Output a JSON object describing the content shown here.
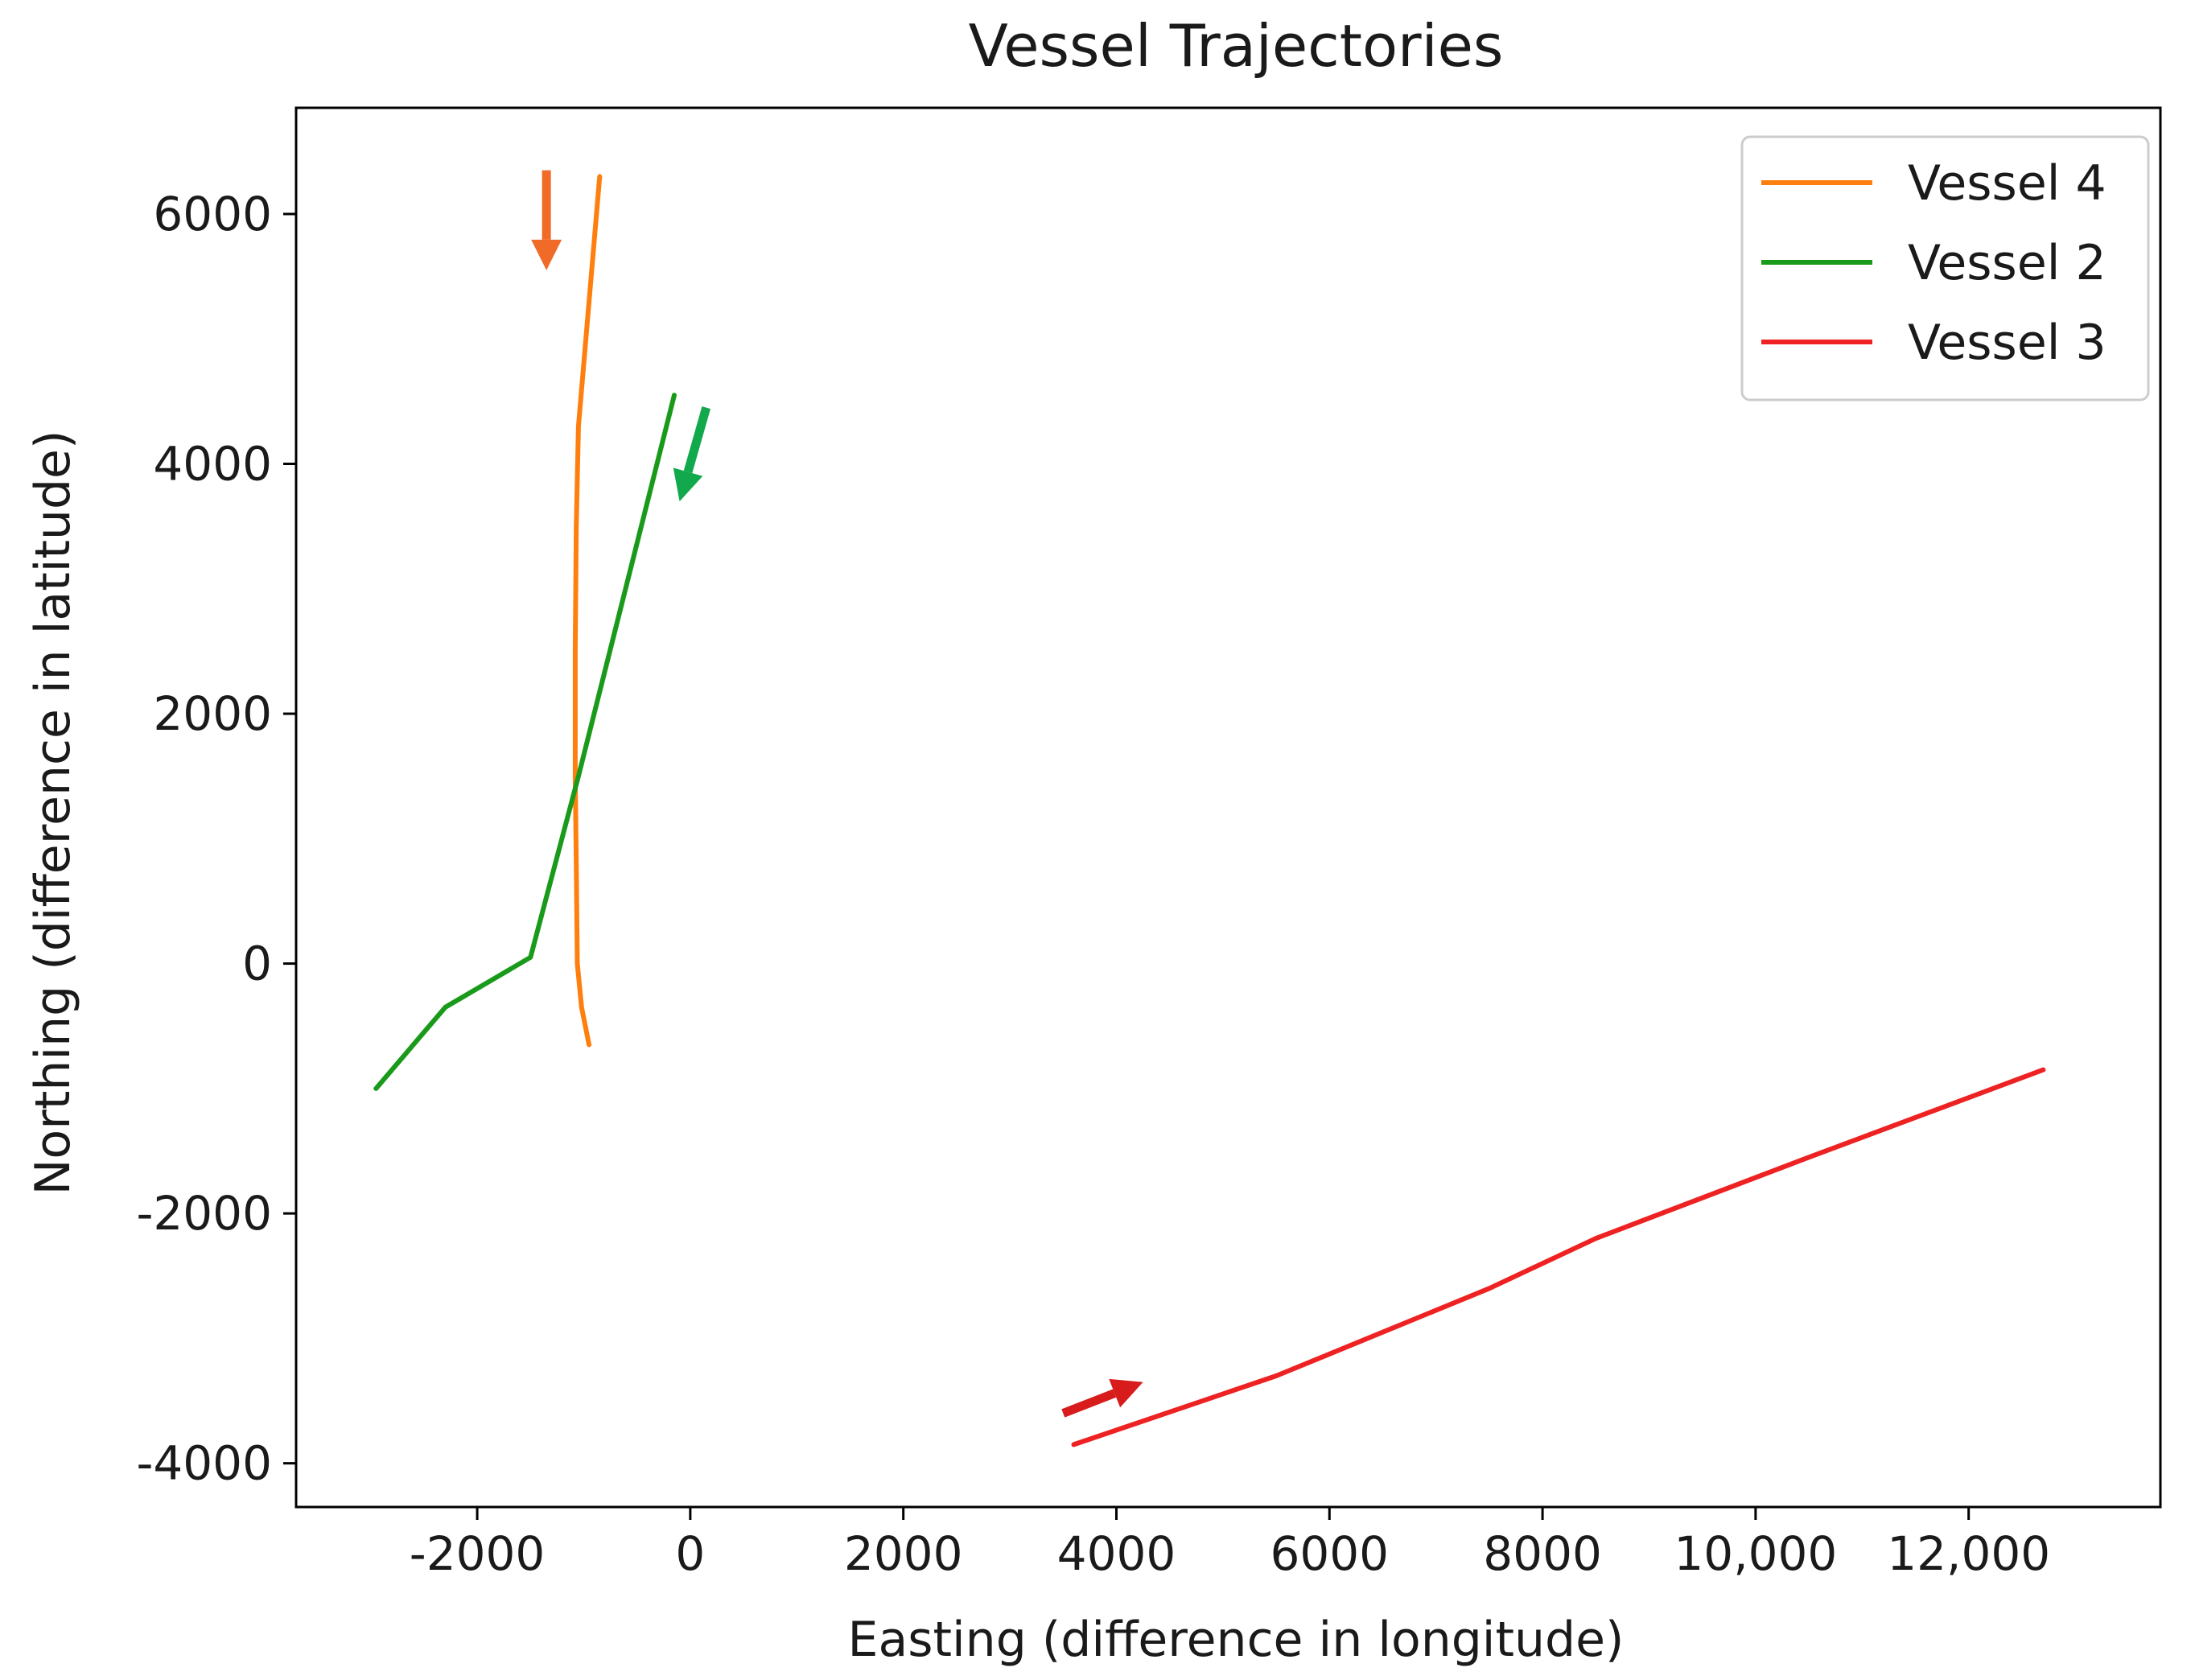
{
  "chart_data": {
    "type": "line",
    "title": "Vessel Trajectories",
    "xlabel": "Easting (difference in longitude)",
    "ylabel": "Northing (difference in latitude)",
    "xlim": [
      -3700,
      13800
    ],
    "ylim": [
      -4350,
      6850
    ],
    "xticks": [
      {
        "value": -2000,
        "label": "-2000"
      },
      {
        "value": 0,
        "label": "0"
      },
      {
        "value": 2000,
        "label": "2000"
      },
      {
        "value": 4000,
        "label": "4000"
      },
      {
        "value": 6000,
        "label": "6000"
      },
      {
        "value": 8000,
        "label": "8000"
      },
      {
        "value": 10000,
        "label": "10,000"
      },
      {
        "value": 12000,
        "label": "12,000"
      }
    ],
    "yticks": [
      {
        "value": -4000,
        "label": "-4000"
      },
      {
        "value": -2000,
        "label": "-2000"
      },
      {
        "value": 0,
        "label": "0"
      },
      {
        "value": 2000,
        "label": "2000"
      },
      {
        "value": 4000,
        "label": "4000"
      },
      {
        "value": 6000,
        "label": "6000"
      }
    ],
    "grid": false,
    "legend_position": "top-right",
    "series": [
      {
        "name": "Vessel 4",
        "color": "#ff7f0e",
        "points": [
          [
            -850,
            6300
          ],
          [
            -900,
            5800
          ],
          [
            -950,
            5300
          ],
          [
            -1000,
            4800
          ],
          [
            -1050,
            4300
          ],
          [
            -1070,
            3500
          ],
          [
            -1080,
            2500
          ],
          [
            -1080,
            1500
          ],
          [
            -1070,
            800
          ],
          [
            -1060,
            0
          ],
          [
            -1020,
            -350
          ],
          [
            -950,
            -650
          ]
        ]
      },
      {
        "name": "Vessel 2",
        "color": "#1a9a1a",
        "points": [
          [
            -150,
            4550
          ],
          [
            -1050,
            1500
          ],
          [
            -1500,
            50
          ],
          [
            -2300,
            -350
          ],
          [
            -2950,
            -1000
          ]
        ]
      },
      {
        "name": "Vessel 3",
        "color": "#ee2222",
        "points": [
          [
            3600,
            -3850
          ],
          [
            5500,
            -3300
          ],
          [
            7500,
            -2600
          ],
          [
            8500,
            -2200
          ],
          [
            10500,
            -1550
          ],
          [
            12700,
            -850
          ]
        ]
      }
    ],
    "annotations": [
      {
        "type": "arrow",
        "color": "#f06a28",
        "from": [
          -1350,
          6350
        ],
        "to": [
          -1350,
          5550
        ]
      },
      {
        "type": "arrow",
        "color": "#12a84c",
        "from": [
          150,
          4450
        ],
        "to": [
          -100,
          3700
        ]
      },
      {
        "type": "arrow",
        "color": "#d81b1b",
        "from": [
          3500,
          -3600
        ],
        "to": [
          4250,
          -3350
        ]
      }
    ]
  }
}
